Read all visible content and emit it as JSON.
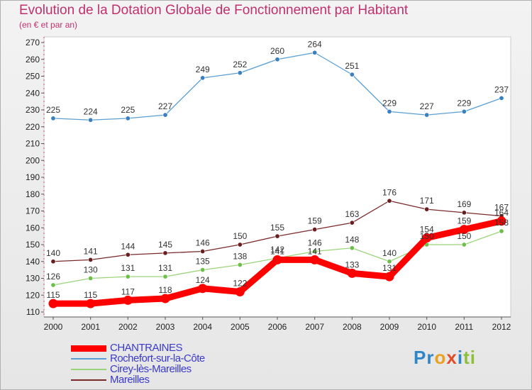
{
  "header": {
    "title": "Evolution de la Dotation Globale de Fonctionnement par Habitant",
    "subtitle": "(en € et par an)"
  },
  "logo": {
    "letters": [
      {
        "ch": "P",
        "color": "#2e86c8"
      },
      {
        "ch": "r",
        "color": "#2e86c8"
      },
      {
        "ch": "o",
        "color": "#e8a21f"
      },
      {
        "ch": "x",
        "color": "#e34c2a"
      },
      {
        "ch": "i",
        "color": "#2e86c8"
      },
      {
        "ch": "t",
        "color": "#8dc03a"
      },
      {
        "ch": "i",
        "color": "#8dc03a"
      }
    ]
  },
  "chart_data": {
    "type": "line",
    "title": "Evolution de la Dotation Globale de Fonctionnement par Habitant",
    "subtitle": "(en € et par an)",
    "x": [
      2000,
      2001,
      2002,
      2003,
      2004,
      2005,
      2006,
      2007,
      2008,
      2009,
      2010,
      2011,
      2012
    ],
    "ylim": [
      110,
      270
    ],
    "yticks": [
      110,
      120,
      130,
      140,
      150,
      160,
      170,
      180,
      190,
      200,
      210,
      220,
      230,
      240,
      250,
      260,
      270
    ],
    "grid": false,
    "legend_position": "bottom-left",
    "series": [
      {
        "name": "Rochefort-sur-la-Côte",
        "color": "#5a9fd4",
        "marker": "#3a7fc0",
        "values": [
          225,
          224,
          225,
          227,
          249,
          252,
          260,
          264,
          251,
          229,
          227,
          229,
          237
        ]
      },
      {
        "name": "Mareilles",
        "color": "#7a2a2a",
        "marker": "#6a1f1f",
        "values": [
          140,
          141,
          144,
          145,
          146,
          150,
          155,
          159,
          163,
          176,
          171,
          169,
          167
        ]
      },
      {
        "name": "Cirey-lès-Mareilles",
        "color": "#9ad47a",
        "marker": "#6cc04a",
        "values": [
          126,
          130,
          131,
          131,
          135,
          138,
          142,
          146,
          148,
          140,
          150,
          150,
          158
        ]
      },
      {
        "name": "CHANTRAINES",
        "color": "#ff0000",
        "marker": "#ff0000",
        "values": [
          115,
          115,
          117,
          118,
          124,
          122,
          141,
          141,
          133,
          131,
          154,
          159,
          164
        ]
      }
    ],
    "data_labels": [
      {
        "series": 0,
        "labels": [
          "225",
          "224",
          "225",
          "227",
          "249",
          "252",
          "260",
          "264",
          "251",
          "229",
          "227",
          "229",
          "237"
        ]
      },
      {
        "series": 1,
        "labels": [
          "140",
          "141",
          "144",
          "145",
          "146",
          "150",
          "155",
          "159",
          "163",
          "176",
          "171",
          "169",
          "167"
        ]
      },
      {
        "series": 2,
        "labels": [
          "126",
          "130",
          "131",
          "131",
          "135",
          "138",
          "142",
          "146",
          "148",
          "140",
          "150",
          "150",
          "158"
        ]
      },
      {
        "series": 3,
        "labels": [
          "115",
          "115",
          "117",
          "118",
          "124",
          "122",
          "141",
          "141",
          "133",
          "131",
          "154",
          "159",
          "164"
        ]
      }
    ],
    "legend_order": [
      3,
      0,
      2,
      1
    ]
  }
}
